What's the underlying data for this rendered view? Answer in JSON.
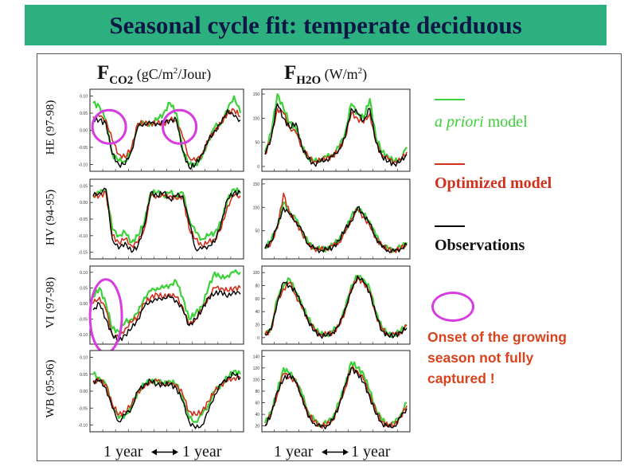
{
  "title": "Seasonal cycle fit: temperate deciduous",
  "columns": {
    "co2": {
      "main": "F",
      "sub": "CO2",
      "unit_pre": " (g",
      "unit_mid": "C/m",
      "unit_sup": "2",
      "unit_post": "/Jour)"
    },
    "h2o": {
      "main": "F",
      "sub": "H2O",
      "unit_pre": " (W/m",
      "unit_sup": "2",
      "unit_post": ")"
    }
  },
  "rows": [
    "HE (97-98)",
    "HV (94-95)",
    "VI (97-98)",
    "WB (95-96)"
  ],
  "legend": {
    "apriori_italic": "a priori",
    "apriori_rest": " model",
    "optimized": "Optimized model",
    "observations": "Observations",
    "note": "Onset of the growing season not fully captured !",
    "colors": {
      "apriori": "#3dd13a",
      "optimized": "#d0301c",
      "observations": "#000000",
      "ellipse": "#d63ce0"
    }
  },
  "xaxis_labels": [
    "1 year",
    "1 year",
    "1 year",
    "1 year"
  ],
  "chart_data": [
    {
      "type": "line",
      "panel": "HE (97-98) CO2",
      "yticks": [
        "0.10",
        "0.05",
        "0.00",
        "-0.05",
        "-0.10"
      ],
      "ylim": [
        -0.12,
        0.12
      ],
      "x": [
        0,
        1,
        2,
        3,
        4,
        5,
        6,
        7,
        8,
        9,
        10,
        11,
        12,
        13,
        14,
        15,
        16,
        17,
        18,
        19,
        20,
        21,
        22,
        23
      ],
      "series": [
        {
          "name": "a priori model",
          "values": [
            0.08,
            0.07,
            0.03,
            -0.07,
            -0.09,
            -0.09,
            -0.06,
            0.02,
            0.02,
            0.02,
            0.03,
            0.05,
            0.08,
            0.05,
            -0.06,
            -0.1,
            -0.1,
            -0.08,
            -0.03,
            0.01,
            0.02,
            0.06,
            0.1,
            0.05
          ]
        },
        {
          "name": "Optimized model",
          "values": [
            0.04,
            0.04,
            0.03,
            -0.03,
            -0.07,
            -0.08,
            -0.05,
            0.02,
            0.02,
            0.02,
            0.02,
            0.02,
            0.03,
            0.03,
            -0.02,
            -0.08,
            -0.09,
            -0.07,
            -0.03,
            0.0,
            0.02,
            0.05,
            0.06,
            0.04
          ]
        },
        {
          "name": "Observations",
          "values": [
            0.03,
            0.03,
            0.02,
            -0.07,
            -0.1,
            -0.1,
            -0.06,
            0.01,
            0.02,
            0.02,
            0.02,
            0.02,
            0.03,
            0.03,
            -0.06,
            -0.11,
            -0.1,
            -0.07,
            -0.03,
            0.0,
            0.02,
            0.06,
            0.04,
            0.03
          ]
        }
      ],
      "ellipses": [
        {
          "x_center": 2.5,
          "y_center": 0.01
        },
        {
          "x_center": 13.5,
          "y_center": 0.01
        }
      ]
    },
    {
      "type": "line",
      "panel": "HE (97-98) H2O",
      "yticks": [
        "150",
        "100",
        "50",
        "0"
      ],
      "ylim": [
        -10,
        160
      ],
      "x": [
        0,
        1,
        2,
        3,
        4,
        5,
        6,
        7,
        8,
        9,
        10,
        11,
        12,
        13,
        14,
        15,
        16,
        17,
        18,
        19,
        20,
        21,
        22,
        23
      ],
      "series": [
        {
          "name": "a priori model",
          "values": [
            30,
            70,
            150,
            120,
            90,
            80,
            40,
            20,
            10,
            15,
            20,
            25,
            40,
            70,
            130,
            110,
            100,
            140,
            60,
            30,
            20,
            10,
            15,
            40
          ]
        },
        {
          "name": "Optimized model",
          "values": [
            25,
            60,
            120,
            110,
            80,
            70,
            40,
            20,
            10,
            12,
            18,
            20,
            35,
            60,
            110,
            100,
            90,
            110,
            50,
            25,
            15,
            10,
            12,
            30
          ]
        },
        {
          "name": "Observations",
          "values": [
            25,
            60,
            130,
            100,
            80,
            90,
            40,
            15,
            5,
            10,
            15,
            20,
            35,
            60,
            120,
            110,
            95,
            120,
            50,
            20,
            10,
            5,
            10,
            25
          ]
        }
      ]
    },
    {
      "type": "line",
      "panel": "HV (94-95) CO2",
      "yticks": [
        "0.05",
        "0.00",
        "-0.05",
        "-0.10",
        "-0.15"
      ],
      "ylim": [
        -0.17,
        0.07
      ],
      "x": [
        0,
        1,
        2,
        3,
        4,
        5,
        6,
        7,
        8,
        9,
        10,
        11,
        12,
        13,
        14,
        15,
        16,
        17,
        18,
        19,
        20,
        21,
        22,
        23
      ],
      "series": [
        {
          "name": "a priori model",
          "values": [
            0.02,
            0.03,
            0.04,
            -0.08,
            -0.1,
            -0.09,
            -0.12,
            -0.1,
            -0.06,
            0.03,
            0.03,
            0.02,
            0.03,
            0.02,
            0.03,
            -0.05,
            -0.09,
            -0.11,
            -0.1,
            -0.09,
            -0.06,
            0.01,
            0.04,
            0.03
          ]
        },
        {
          "name": "Optimized model",
          "values": [
            0.02,
            0.02,
            0.03,
            -0.1,
            -0.12,
            -0.11,
            -0.13,
            -0.12,
            -0.08,
            0.02,
            0.02,
            0.02,
            0.02,
            0.01,
            0.02,
            -0.08,
            -0.11,
            -0.13,
            -0.12,
            -0.11,
            -0.08,
            -0.01,
            0.02,
            0.02
          ]
        },
        {
          "name": "Observations",
          "values": [
            0.02,
            0.03,
            0.04,
            -0.11,
            -0.14,
            -0.12,
            -0.15,
            -0.13,
            -0.07,
            0.03,
            0.02,
            0.03,
            0.01,
            0.02,
            0.02,
            -0.06,
            -0.14,
            -0.14,
            -0.13,
            -0.12,
            -0.06,
            0.01,
            0.03,
            0.03
          ]
        }
      ]
    },
    {
      "type": "line",
      "panel": "HV (94-95) H2O",
      "yticks": [
        "150",
        "100",
        "50"
      ],
      "ylim": [
        -10,
        160
      ],
      "x": [
        0,
        1,
        2,
        3,
        4,
        5,
        6,
        7,
        8,
        9,
        10,
        11,
        12,
        13,
        14,
        15,
        16,
        17,
        18,
        19,
        20,
        21,
        22,
        23
      ],
      "series": [
        {
          "name": "a priori model",
          "values": [
            15,
            30,
            60,
            110,
            90,
            75,
            50,
            25,
            15,
            10,
            12,
            20,
            30,
            50,
            80,
            100,
            85,
            70,
            40,
            20,
            12,
            10,
            15,
            25
          ]
        },
        {
          "name": "Optimized model",
          "values": [
            12,
            25,
            55,
            130,
            85,
            70,
            45,
            20,
            12,
            10,
            12,
            18,
            25,
            45,
            75,
            95,
            80,
            60,
            35,
            18,
            10,
            8,
            12,
            20
          ]
        },
        {
          "name": "Observations",
          "values": [
            12,
            28,
            60,
            100,
            85,
            70,
            50,
            22,
            12,
            8,
            10,
            15,
            28,
            55,
            70,
            100,
            85,
            65,
            35,
            15,
            8,
            6,
            12,
            20
          ]
        }
      ]
    },
    {
      "type": "line",
      "panel": "VI (97-98) CO2",
      "yticks": [
        "0.10",
        "0.05",
        "0.00",
        "-0.05",
        "-0.10"
      ],
      "ylim": [
        -0.13,
        0.12
      ],
      "x": [
        0,
        1,
        2,
        3,
        4,
        5,
        6,
        7,
        8,
        9,
        10,
        11,
        12,
        13,
        14,
        15,
        16,
        17,
        18,
        19,
        20,
        21,
        22,
        23
      ],
      "series": [
        {
          "name": "a priori model",
          "values": [
            0.02,
            0.05,
            0.0,
            -0.08,
            -0.09,
            -0.06,
            -0.05,
            -0.03,
            0.02,
            0.04,
            0.05,
            0.05,
            0.06,
            0.07,
            0.02,
            -0.05,
            -0.03,
            -0.01,
            0.05,
            0.1,
            0.08,
            0.09,
            0.1,
            0.1
          ]
        },
        {
          "name": "Optimized model",
          "values": [
            0.0,
            0.02,
            -0.02,
            -0.1,
            -0.11,
            -0.08,
            -0.06,
            -0.04,
            0.0,
            0.02,
            0.03,
            0.02,
            0.03,
            0.02,
            -0.01,
            -0.07,
            -0.05,
            -0.02,
            0.02,
            0.05,
            0.05,
            0.04,
            0.05,
            0.05
          ]
        },
        {
          "name": "Observations",
          "values": [
            -0.02,
            0.0,
            -0.05,
            -0.1,
            -0.12,
            -0.1,
            -0.08,
            -0.05,
            -0.01,
            0.01,
            0.01,
            0.02,
            0.02,
            0.01,
            -0.02,
            -0.07,
            -0.05,
            -0.02,
            0.02,
            0.03,
            0.04,
            0.02,
            0.04,
            0.03
          ]
        }
      ],
      "ellipses": [
        {
          "x_center": 2,
          "y_center": -0.04
        }
      ]
    },
    {
      "type": "line",
      "panel": "VI (97-98) H2O",
      "yticks": [
        "100",
        "80",
        "60",
        "40",
        "20",
        "0"
      ],
      "ylim": [
        -10,
        110
      ],
      "x": [
        0,
        1,
        2,
        3,
        4,
        5,
        6,
        7,
        8,
        9,
        10,
        11,
        12,
        13,
        14,
        15,
        16,
        17,
        18,
        19,
        20,
        21,
        22,
        23
      ],
      "series": [
        {
          "name": "a priori model",
          "values": [
            5,
            15,
            60,
            80,
            90,
            70,
            50,
            30,
            15,
            5,
            5,
            10,
            20,
            45,
            80,
            95,
            90,
            75,
            40,
            15,
            5,
            5,
            10,
            20
          ]
        },
        {
          "name": "Optimized model",
          "values": [
            5,
            12,
            55,
            75,
            85,
            65,
            45,
            28,
            12,
            5,
            5,
            8,
            18,
            40,
            75,
            90,
            85,
            70,
            35,
            12,
            5,
            5,
            8,
            18
          ]
        },
        {
          "name": "Observations",
          "values": [
            5,
            12,
            55,
            85,
            80,
            70,
            50,
            25,
            10,
            3,
            3,
            8,
            18,
            45,
            70,
            95,
            85,
            70,
            35,
            10,
            3,
            3,
            8,
            15
          ]
        }
      ]
    },
    {
      "type": "line",
      "panel": "WB (95-96) CO2",
      "yticks": [
        "0.10",
        "0.05",
        "0.00",
        "-0.05",
        "-0.10"
      ],
      "ylim": [
        -0.12,
        0.12
      ],
      "x": [
        0,
        1,
        2,
        3,
        4,
        5,
        6,
        7,
        8,
        9,
        10,
        11,
        12,
        13,
        14,
        15,
        16,
        17,
        18,
        19,
        20,
        21,
        22,
        23
      ],
      "series": [
        {
          "name": "a priori model",
          "values": [
            0.05,
            0.04,
            0.02,
            -0.04,
            -0.08,
            -0.07,
            -0.05,
            0.0,
            0.02,
            0.03,
            0.03,
            0.02,
            0.03,
            0.02,
            -0.02,
            -0.08,
            -0.09,
            -0.07,
            -0.04,
            0.0,
            0.02,
            0.04,
            0.06,
            0.05
          ]
        },
        {
          "name": "Optimized model",
          "values": [
            0.03,
            0.03,
            0.02,
            -0.04,
            -0.07,
            -0.06,
            -0.04,
            0.0,
            0.01,
            0.03,
            0.03,
            0.02,
            0.02,
            0.02,
            -0.01,
            -0.06,
            -0.07,
            -0.06,
            -0.03,
            0.0,
            0.02,
            0.03,
            0.04,
            0.04
          ]
        },
        {
          "name": "Observations",
          "values": [
            0.03,
            0.03,
            0.01,
            -0.05,
            -0.09,
            -0.07,
            -0.05,
            0.0,
            0.02,
            0.03,
            0.02,
            0.02,
            0.02,
            0.01,
            -0.03,
            -0.09,
            -0.11,
            -0.1,
            -0.06,
            -0.01,
            0.02,
            0.04,
            0.05,
            0.04
          ]
        }
      ]
    },
    {
      "type": "line",
      "panel": "WB (95-96) H2O",
      "yticks": [
        "140",
        "120",
        "100",
        "80",
        "60",
        "40",
        "20"
      ],
      "ylim": [
        10,
        150
      ],
      "x": [
        0,
        1,
        2,
        3,
        4,
        5,
        6,
        7,
        8,
        9,
        10,
        11,
        12,
        13,
        14,
        15,
        16,
        17,
        18,
        19,
        20,
        21,
        22,
        23
      ],
      "series": [
        {
          "name": "a priori model",
          "values": [
            25,
            45,
            80,
            120,
            110,
            100,
            75,
            45,
            30,
            22,
            25,
            35,
            60,
            90,
            130,
            120,
            110,
            80,
            50,
            30,
            22,
            25,
            40,
            60
          ]
        },
        {
          "name": "Optimized model",
          "values": [
            22,
            40,
            75,
            110,
            105,
            95,
            70,
            40,
            28,
            20,
            22,
            30,
            55,
            85,
            120,
            115,
            100,
            75,
            45,
            28,
            20,
            22,
            35,
            55
          ]
        },
        {
          "name": "Observations",
          "values": [
            20,
            40,
            80,
            100,
            110,
            95,
            70,
            35,
            25,
            18,
            20,
            30,
            55,
            90,
            120,
            110,
            95,
            70,
            40,
            25,
            18,
            20,
            35,
            50
          ]
        }
      ]
    }
  ]
}
